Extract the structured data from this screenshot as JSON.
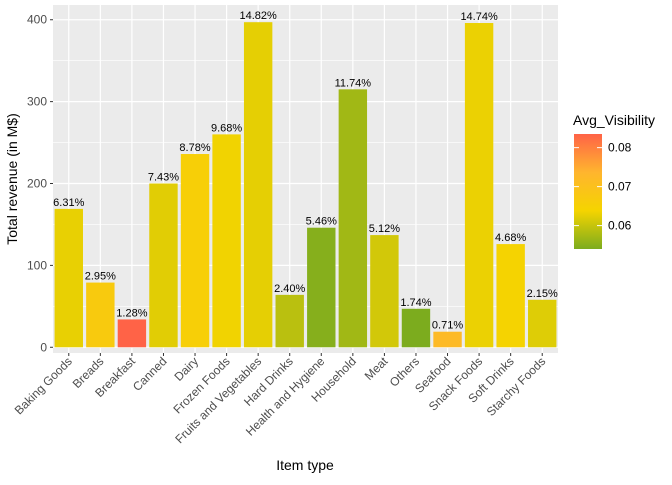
{
  "chart_data": {
    "type": "bar",
    "xlabel": "Item type",
    "ylabel": "Total revenue (in M$)",
    "ylim": [
      -7,
      418
    ],
    "yticks": [
      0,
      100,
      200,
      300,
      400
    ],
    "grid": true,
    "categories": [
      "Baking Goods",
      "Breads",
      "Breakfast",
      "Canned",
      "Dairy",
      "Frozen Foods",
      "Fruits and Vegetables",
      "Hard Drinks",
      "Health and Hygiene",
      "Household",
      "Meat",
      "Others",
      "Seafood",
      "Snack Foods",
      "Soft Drinks",
      "Starchy Foods"
    ],
    "values": [
      169,
      79,
      34,
      200,
      236,
      260,
      397,
      64,
      146,
      315,
      137,
      47,
      19,
      396,
      126,
      58
    ],
    "labels": [
      "6.31%",
      "2.95%",
      "1.28%",
      "7.43%",
      "8.78%",
      "9.68%",
      "14.82%",
      "2.40%",
      "5.46%",
      "11.74%",
      "5.12%",
      "1.74%",
      "0.71%",
      "14.74%",
      "4.68%",
      "2.15%"
    ],
    "avg_visibility": [
      0.0628,
      0.0669,
      0.0835,
      0.0622,
      0.0654,
      0.0635,
      0.0625,
      0.059,
      0.0548,
      0.057,
      0.061,
      0.054,
      0.072,
      0.063,
      0.064,
      0.062
    ],
    "legend": {
      "title": "Avg_Visibility",
      "position": "right",
      "ticks": [
        0.06,
        0.07,
        0.08
      ],
      "tick_labels": [
        "0.06",
        "0.07",
        "0.08"
      ],
      "min": 0.054,
      "max": 0.0835,
      "colors": [
        "#7cac1e",
        "#f5d400",
        "#ffb52e",
        "#ff6347"
      ]
    }
  }
}
